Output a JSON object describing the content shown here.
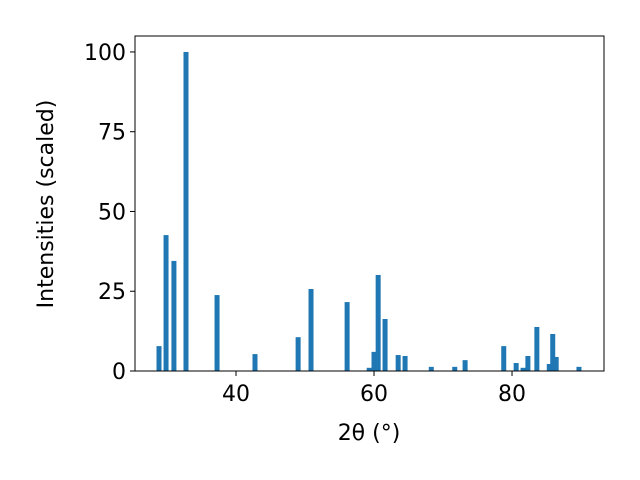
{
  "chart_data": {
    "type": "bar",
    "x_label": "2θ (°)",
    "y_label": "Intensities (scaled)",
    "x": [
      28.84,
      29.86,
      31.0,
      32.75,
      37.25,
      42.75,
      49.0,
      50.87,
      56.1,
      59.3,
      60.0,
      60.6,
      61.6,
      63.5,
      64.5,
      68.3,
      71.7,
      73.2,
      78.8,
      80.6,
      81.6,
      82.3,
      83.6,
      85.4,
      85.9,
      86.4,
      89.7
    ],
    "values": [
      7.8,
      42.6,
      34.5,
      100,
      23.8,
      5.3,
      10.6,
      25.7,
      21.6,
      1,
      6,
      30.1,
      16.3,
      5,
      4.7,
      1.3,
      1.3,
      3.4,
      7.8,
      2.5,
      1,
      4.7,
      13.8,
      2.2,
      11.6,
      4.4,
      1.3
    ],
    "color": "#1f77b4",
    "xlim": [
      25.36,
      93.33
    ],
    "ylim": [
      0,
      105
    ],
    "xticks": [
      40,
      60,
      80
    ],
    "yticks": [
      0,
      25,
      50,
      75,
      100
    ]
  }
}
